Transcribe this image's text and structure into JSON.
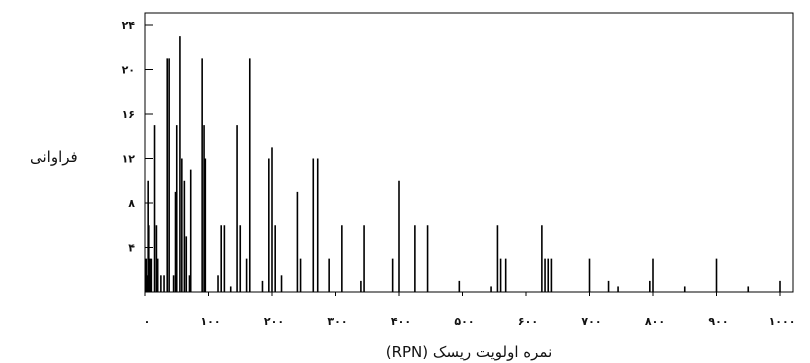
{
  "chart_data": {
    "type": "bar",
    "title": "",
    "xlabel": "نمره اولویت ریسک (RPN)",
    "ylabel": "فراوانی",
    "xlim": [
      0,
      1000
    ],
    "ylim": [
      0,
      24
    ],
    "x_ticks": [
      0,
      100,
      200,
      300,
      400,
      500,
      600,
      700,
      800,
      900,
      1000
    ],
    "x_tick_labels": [
      "۰",
      "۱۰۰",
      "۲۰۰",
      "۳۰۰",
      "۴۰۰",
      "۵۰۰",
      "۶۰۰",
      "۷۰۰",
      "۸۰۰",
      "۹۰۰",
      "۱۰۰۰"
    ],
    "y_ticks": [
      4,
      8,
      12,
      16,
      20,
      24
    ],
    "y_tick_labels": [
      "۴",
      "۸",
      "۱۲",
      "۱۶",
      "۲۰",
      "۲۴"
    ],
    "grid": false,
    "bars": [
      {
        "x": 2,
        "y": 3
      },
      {
        "x": 3,
        "y": 1.5
      },
      {
        "x": 5,
        "y": 10
      },
      {
        "x": 6,
        "y": 6
      },
      {
        "x": 8,
        "y": 3
      },
      {
        "x": 9,
        "y": 1.5
      },
      {
        "x": 10,
        "y": 3
      },
      {
        "x": 15,
        "y": 15
      },
      {
        "x": 18,
        "y": 6
      },
      {
        "x": 20,
        "y": 3
      },
      {
        "x": 25,
        "y": 1.5
      },
      {
        "x": 30,
        "y": 1.5
      },
      {
        "x": 35,
        "y": 21
      },
      {
        "x": 38,
        "y": 21
      },
      {
        "x": 45,
        "y": 1.5
      },
      {
        "x": 48,
        "y": 9
      },
      {
        "x": 50,
        "y": 15
      },
      {
        "x": 55,
        "y": 23
      },
      {
        "x": 58,
        "y": 12
      },
      {
        "x": 62,
        "y": 10
      },
      {
        "x": 65,
        "y": 5
      },
      {
        "x": 70,
        "y": 1.5
      },
      {
        "x": 72,
        "y": 11
      },
      {
        "x": 90,
        "y": 21
      },
      {
        "x": 93,
        "y": 15
      },
      {
        "x": 95,
        "y": 12
      },
      {
        "x": 115,
        "y": 1.5
      },
      {
        "x": 120,
        "y": 6
      },
      {
        "x": 125,
        "y": 6
      },
      {
        "x": 135,
        "y": 0.5
      },
      {
        "x": 145,
        "y": 15
      },
      {
        "x": 150,
        "y": 6
      },
      {
        "x": 160,
        "y": 3
      },
      {
        "x": 165,
        "y": 21
      },
      {
        "x": 185,
        "y": 1
      },
      {
        "x": 195,
        "y": 12
      },
      {
        "x": 200,
        "y": 13
      },
      {
        "x": 205,
        "y": 6
      },
      {
        "x": 215,
        "y": 1.5
      },
      {
        "x": 240,
        "y": 9
      },
      {
        "x": 245,
        "y": 3
      },
      {
        "x": 265,
        "y": 12
      },
      {
        "x": 272,
        "y": 12
      },
      {
        "x": 290,
        "y": 3
      },
      {
        "x": 310,
        "y": 6
      },
      {
        "x": 340,
        "y": 1
      },
      {
        "x": 345,
        "y": 6
      },
      {
        "x": 390,
        "y": 3
      },
      {
        "x": 400,
        "y": 10
      },
      {
        "x": 425,
        "y": 6
      },
      {
        "x": 445,
        "y": 6
      },
      {
        "x": 495,
        "y": 1
      },
      {
        "x": 545,
        "y": 0.5
      },
      {
        "x": 555,
        "y": 6
      },
      {
        "x": 560,
        "y": 3
      },
      {
        "x": 568,
        "y": 3
      },
      {
        "x": 625,
        "y": 6
      },
      {
        "x": 630,
        "y": 3
      },
      {
        "x": 635,
        "y": 3
      },
      {
        "x": 640,
        "y": 3
      },
      {
        "x": 700,
        "y": 3
      },
      {
        "x": 730,
        "y": 1
      },
      {
        "x": 745,
        "y": 0.5
      },
      {
        "x": 795,
        "y": 1
      },
      {
        "x": 800,
        "y": 3
      },
      {
        "x": 850,
        "y": 0.5
      },
      {
        "x": 900,
        "y": 3
      },
      {
        "x": 950,
        "y": 0.5
      },
      {
        "x": 1000,
        "y": 1
      }
    ],
    "color": "#000000"
  }
}
